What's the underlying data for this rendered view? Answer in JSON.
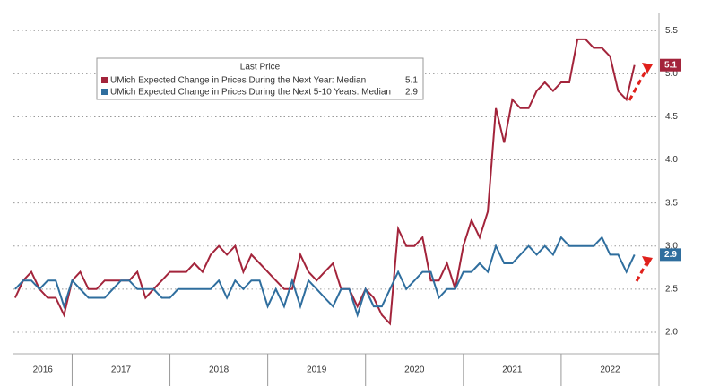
{
  "chart_data": {
    "type": "line",
    "legend_title": "Last Price",
    "x": [
      2016.417,
      2016.5,
      2016.583,
      2016.667,
      2016.75,
      2016.833,
      2016.917,
      2017.0,
      2017.083,
      2017.167,
      2017.25,
      2017.333,
      2017.417,
      2017.5,
      2017.583,
      2017.667,
      2017.75,
      2017.833,
      2017.917,
      2018.0,
      2018.083,
      2018.167,
      2018.25,
      2018.333,
      2018.417,
      2018.5,
      2018.583,
      2018.667,
      2018.75,
      2018.833,
      2018.917,
      2019.0,
      2019.083,
      2019.167,
      2019.25,
      2019.333,
      2019.417,
      2019.5,
      2019.583,
      2019.667,
      2019.75,
      2019.833,
      2019.917,
      2020.0,
      2020.083,
      2020.167,
      2020.25,
      2020.333,
      2020.417,
      2020.5,
      2020.583,
      2020.667,
      2020.75,
      2020.833,
      2020.917,
      2021.0,
      2021.083,
      2021.167,
      2021.25,
      2021.333,
      2021.417,
      2021.5,
      2021.583,
      2021.667,
      2021.75,
      2021.833,
      2021.917,
      2022.0,
      2022.083,
      2022.167,
      2022.25,
      2022.333,
      2022.417,
      2022.5,
      2022.583,
      2022.667,
      2022.75
    ],
    "series": [
      {
        "name": "UMich Expected Change in Prices During the Next Year: Median",
        "color": "#a3243b",
        "values": [
          2.4,
          2.6,
          2.7,
          2.5,
          2.4,
          2.4,
          2.2,
          2.6,
          2.7,
          2.5,
          2.5,
          2.6,
          2.6,
          2.6,
          2.6,
          2.7,
          2.4,
          2.5,
          2.6,
          2.7,
          2.7,
          2.7,
          2.8,
          2.7,
          2.9,
          3.0,
          2.9,
          3.0,
          2.7,
          2.9,
          2.8,
          2.7,
          2.6,
          2.5,
          2.5,
          2.9,
          2.7,
          2.6,
          2.7,
          2.8,
          2.5,
          2.5,
          2.3,
          2.5,
          2.4,
          2.2,
          2.1,
          3.2,
          3.0,
          3.0,
          3.1,
          2.6,
          2.6,
          2.8,
          2.5,
          3.0,
          3.3,
          3.1,
          3.4,
          4.6,
          4.2,
          4.7,
          4.6,
          4.6,
          4.8,
          4.9,
          4.8,
          4.9,
          4.9,
          5.4,
          5.4,
          5.3,
          5.3,
          5.2,
          4.8,
          4.7,
          5.1
        ]
      },
      {
        "name": "UMich Expected Change in Prices During the Next 5-10 Years: Median",
        "color": "#2f6e9e",
        "values": [
          2.5,
          2.6,
          2.6,
          2.5,
          2.6,
          2.6,
          2.3,
          2.6,
          2.5,
          2.4,
          2.4,
          2.4,
          2.5,
          2.6,
          2.6,
          2.5,
          2.5,
          2.5,
          2.4,
          2.4,
          2.5,
          2.5,
          2.5,
          2.5,
          2.5,
          2.6,
          2.4,
          2.6,
          2.5,
          2.6,
          2.6,
          2.3,
          2.5,
          2.3,
          2.6,
          2.3,
          2.6,
          2.5,
          2.4,
          2.3,
          2.5,
          2.5,
          2.2,
          2.5,
          2.3,
          2.3,
          2.5,
          2.7,
          2.5,
          2.6,
          2.7,
          2.7,
          2.4,
          2.5,
          2.5,
          2.7,
          2.7,
          2.8,
          2.7,
          3.0,
          2.8,
          2.8,
          2.9,
          3.0,
          2.9,
          3.0,
          2.9,
          3.1,
          3.0,
          3.0,
          3.0,
          3.0,
          3.1,
          2.9,
          2.9,
          2.7,
          2.9
        ]
      }
    ],
    "xlim": [
      2016.4,
      2023
    ],
    "xticks": [
      2017,
      2018,
      2019,
      2020,
      2021,
      2022
    ],
    "year_labels": [
      "2016",
      "2017",
      "2018",
      "2019",
      "2020",
      "2021",
      "2022"
    ],
    "ylim": [
      1.75,
      5.7
    ],
    "yticks": [
      {
        "value": 2,
        "label": "2.0"
      },
      2.5,
      {
        "value": 3,
        "label": "3.0"
      },
      3.5,
      {
        "value": 4,
        "label": "4.0"
      },
      4.5,
      {
        "value": 5,
        "label": "5.0"
      },
      5.5
    ],
    "grid": true
  }
}
